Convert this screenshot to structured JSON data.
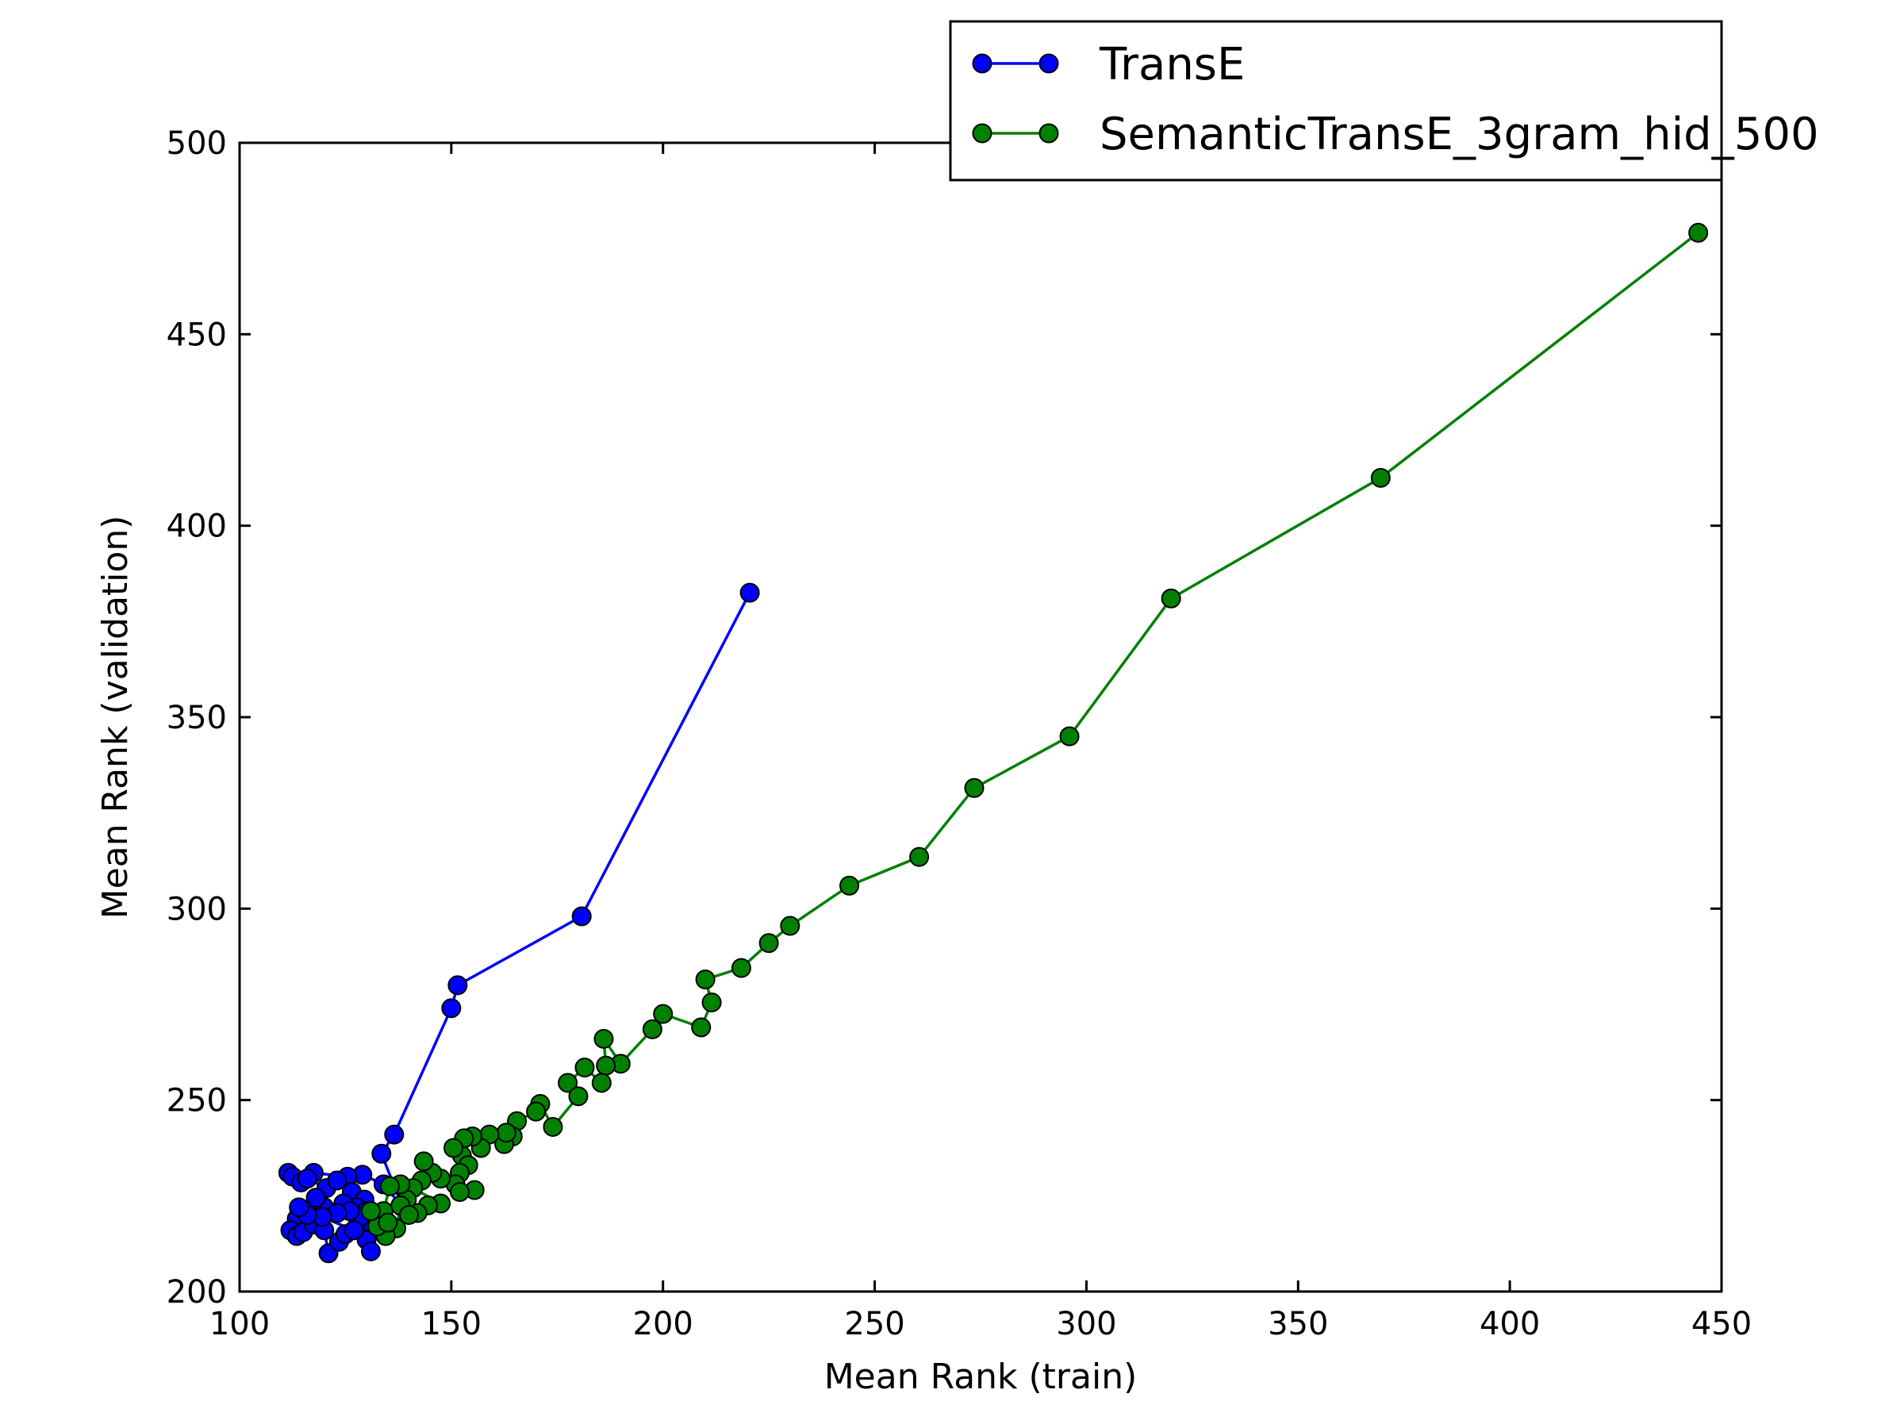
{
  "chart_data": {
    "type": "line",
    "title": "",
    "xlabel": "Mean Rank (train)",
    "ylabel": "Mean Rank (validation)",
    "xlim": [
      100,
      450
    ],
    "ylim": [
      200,
      500
    ],
    "xticks": [
      100,
      150,
      200,
      250,
      300,
      350,
      400,
      450
    ],
    "yticks": [
      200,
      250,
      300,
      350,
      400,
      450,
      500
    ],
    "grid": false,
    "legend_position": "top-right",
    "series": [
      {
        "name": "TransE",
        "color": "#0000ff",
        "marker": "circle",
        "points": [
          [
            220.5,
            382.5
          ],
          [
            180.8,
            298
          ],
          [
            151.5,
            280
          ],
          [
            150,
            274
          ],
          [
            136.5,
            241
          ],
          [
            133.5,
            236
          ],
          [
            138.5,
            222
          ],
          [
            134,
            228
          ],
          [
            129,
            230.5
          ],
          [
            125.5,
            230
          ],
          [
            117.5,
            231
          ],
          [
            111.5,
            231
          ],
          [
            112.5,
            230
          ],
          [
            114.5,
            228.5
          ],
          [
            116,
            229.5
          ],
          [
            120.5,
            227
          ],
          [
            123,
            229
          ],
          [
            126.5,
            226
          ],
          [
            129.5,
            224
          ],
          [
            127.5,
            222
          ],
          [
            124.5,
            223
          ],
          [
            120,
            222
          ],
          [
            118,
            224.5
          ],
          [
            115,
            221.5
          ],
          [
            113.5,
            219
          ],
          [
            112,
            216
          ],
          [
            113.5,
            214.5
          ],
          [
            115,
            215.5
          ],
          [
            117.5,
            217.5
          ],
          [
            120,
            216
          ],
          [
            121,
            210
          ],
          [
            123.5,
            213
          ],
          [
            125,
            215
          ],
          [
            128,
            218
          ],
          [
            130,
            221
          ],
          [
            131.5,
            216.5
          ],
          [
            130,
            213.5
          ],
          [
            131,
            210.5
          ],
          [
            128.5,
            219.5
          ],
          [
            126,
            221
          ],
          [
            123,
            220.5
          ],
          [
            119.5,
            219.5
          ],
          [
            116,
            220
          ],
          [
            114,
            222
          ],
          [
            127,
            216
          ]
        ]
      },
      {
        "name": "SemanticTransE_3gram_hid_500",
        "color": "#008000",
        "marker": "circle",
        "points": [
          [
            444.5,
            476.5
          ],
          [
            369.5,
            412.5
          ],
          [
            320,
            381
          ],
          [
            296,
            345
          ],
          [
            273.5,
            331.5
          ],
          [
            260.5,
            313.5
          ],
          [
            244,
            306
          ],
          [
            230,
            295.5
          ],
          [
            225,
            291
          ],
          [
            218.5,
            284.5
          ],
          [
            210,
            281.5
          ],
          [
            211.5,
            275.5
          ],
          [
            209,
            269
          ],
          [
            200,
            272.5
          ],
          [
            197.5,
            268.5
          ],
          [
            190,
            259.5
          ],
          [
            186,
            266
          ],
          [
            186.5,
            259
          ],
          [
            185.5,
            254.5
          ],
          [
            181.5,
            258.5
          ],
          [
            177.5,
            254.5
          ],
          [
            180,
            251
          ],
          [
            174,
            243
          ],
          [
            171,
            249
          ],
          [
            170,
            247
          ],
          [
            165.5,
            244.5
          ],
          [
            164.5,
            240.5
          ],
          [
            162.5,
            238.5
          ],
          [
            163,
            241.5
          ],
          [
            159,
            241
          ],
          [
            157,
            237.5
          ],
          [
            155,
            240.5
          ],
          [
            153,
            240
          ],
          [
            152.5,
            235.5
          ],
          [
            150.5,
            237.5
          ],
          [
            154,
            233
          ],
          [
            152,
            231
          ],
          [
            151,
            228
          ],
          [
            155.5,
            226.5
          ],
          [
            152,
            226
          ],
          [
            147.5,
            229.5
          ],
          [
            145.5,
            231
          ],
          [
            143.5,
            234
          ],
          [
            143,
            229
          ],
          [
            141,
            227
          ],
          [
            147.5,
            223
          ],
          [
            144.5,
            222.5
          ],
          [
            142,
            220.5
          ],
          [
            139.5,
            224
          ],
          [
            138,
            228
          ],
          [
            135.5,
            227.5
          ],
          [
            134,
            221
          ],
          [
            138,
            222.5
          ],
          [
            137,
            216.5
          ],
          [
            134.5,
            214.5
          ],
          [
            132.5,
            217
          ],
          [
            131,
            221
          ],
          [
            135,
            218
          ],
          [
            140,
            220
          ]
        ]
      }
    ]
  }
}
